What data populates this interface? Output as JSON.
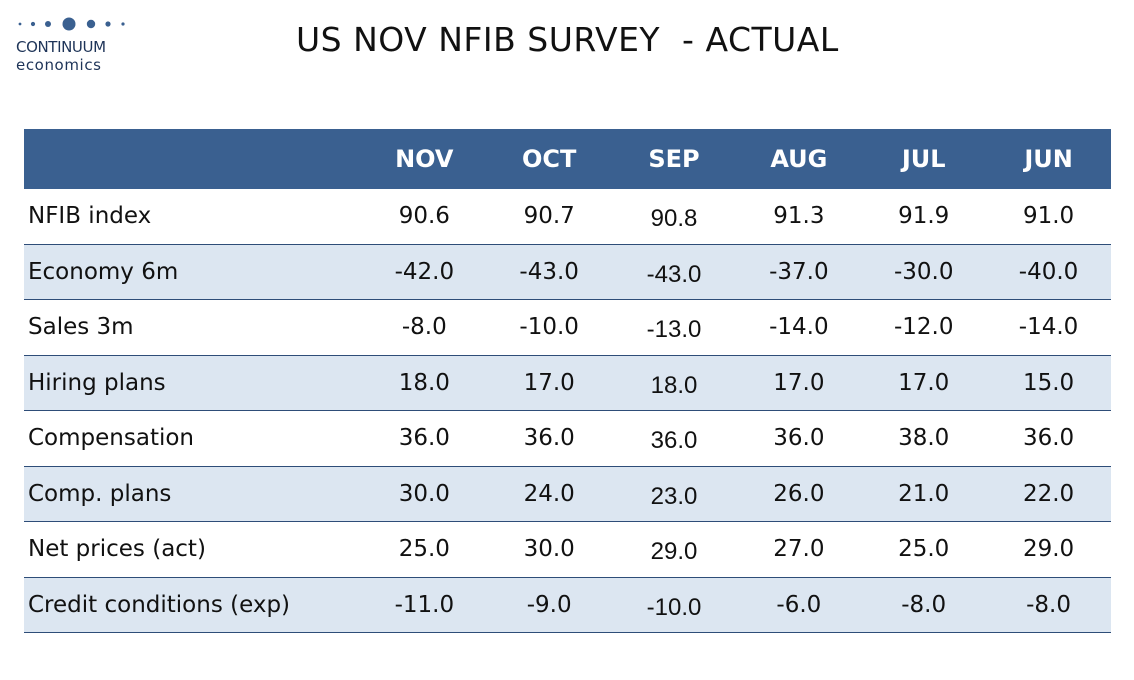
{
  "logo": {
    "line1": "CONTINUUM",
    "line2": "economics",
    "brand_color": "#1e3458"
  },
  "title": "US NOV NFIB SURVEY  - ACTUAL",
  "colors": {
    "header_bg": "#3a6090",
    "header_text": "#ffffff",
    "shaded_row": "#dce6f1",
    "row_border": "#2e4d78"
  },
  "chart_data": {
    "type": "table",
    "columns": [
      "NOV",
      "OCT",
      "SEP",
      "AUG",
      "JUL",
      "JUN"
    ],
    "rows": [
      {
        "label": "NFIB index",
        "values": [
          "90.6",
          "90.7",
          "90.8",
          "91.3",
          "91.9",
          "91.0"
        ]
      },
      {
        "label": "Economy 6m",
        "values": [
          "-42.0",
          "-43.0",
          "-43.0",
          "-37.0",
          "-30.0",
          "-40.0"
        ]
      },
      {
        "label": "Sales 3m",
        "values": [
          "-8.0",
          "-10.0",
          "-13.0",
          "-14.0",
          "-12.0",
          "-14.0"
        ]
      },
      {
        "label": "Hiring plans",
        "values": [
          "18.0",
          "17.0",
          "18.0",
          "17.0",
          "17.0",
          "15.0"
        ]
      },
      {
        "label": "Compensation",
        "values": [
          "36.0",
          "36.0",
          "36.0",
          "36.0",
          "38.0",
          "36.0"
        ]
      },
      {
        "label": "Comp. plans",
        "values": [
          "30.0",
          "24.0",
          "23.0",
          "26.0",
          "21.0",
          "22.0"
        ]
      },
      {
        "label": "Net prices (act)",
        "values": [
          "25.0",
          "30.0",
          "29.0",
          "27.0",
          "25.0",
          "29.0"
        ]
      },
      {
        "label": "Credit conditions (exp)",
        "values": [
          "-11.0",
          "-9.0",
          "-10.0",
          "-6.0",
          "-8.0",
          "-8.0"
        ]
      }
    ]
  }
}
